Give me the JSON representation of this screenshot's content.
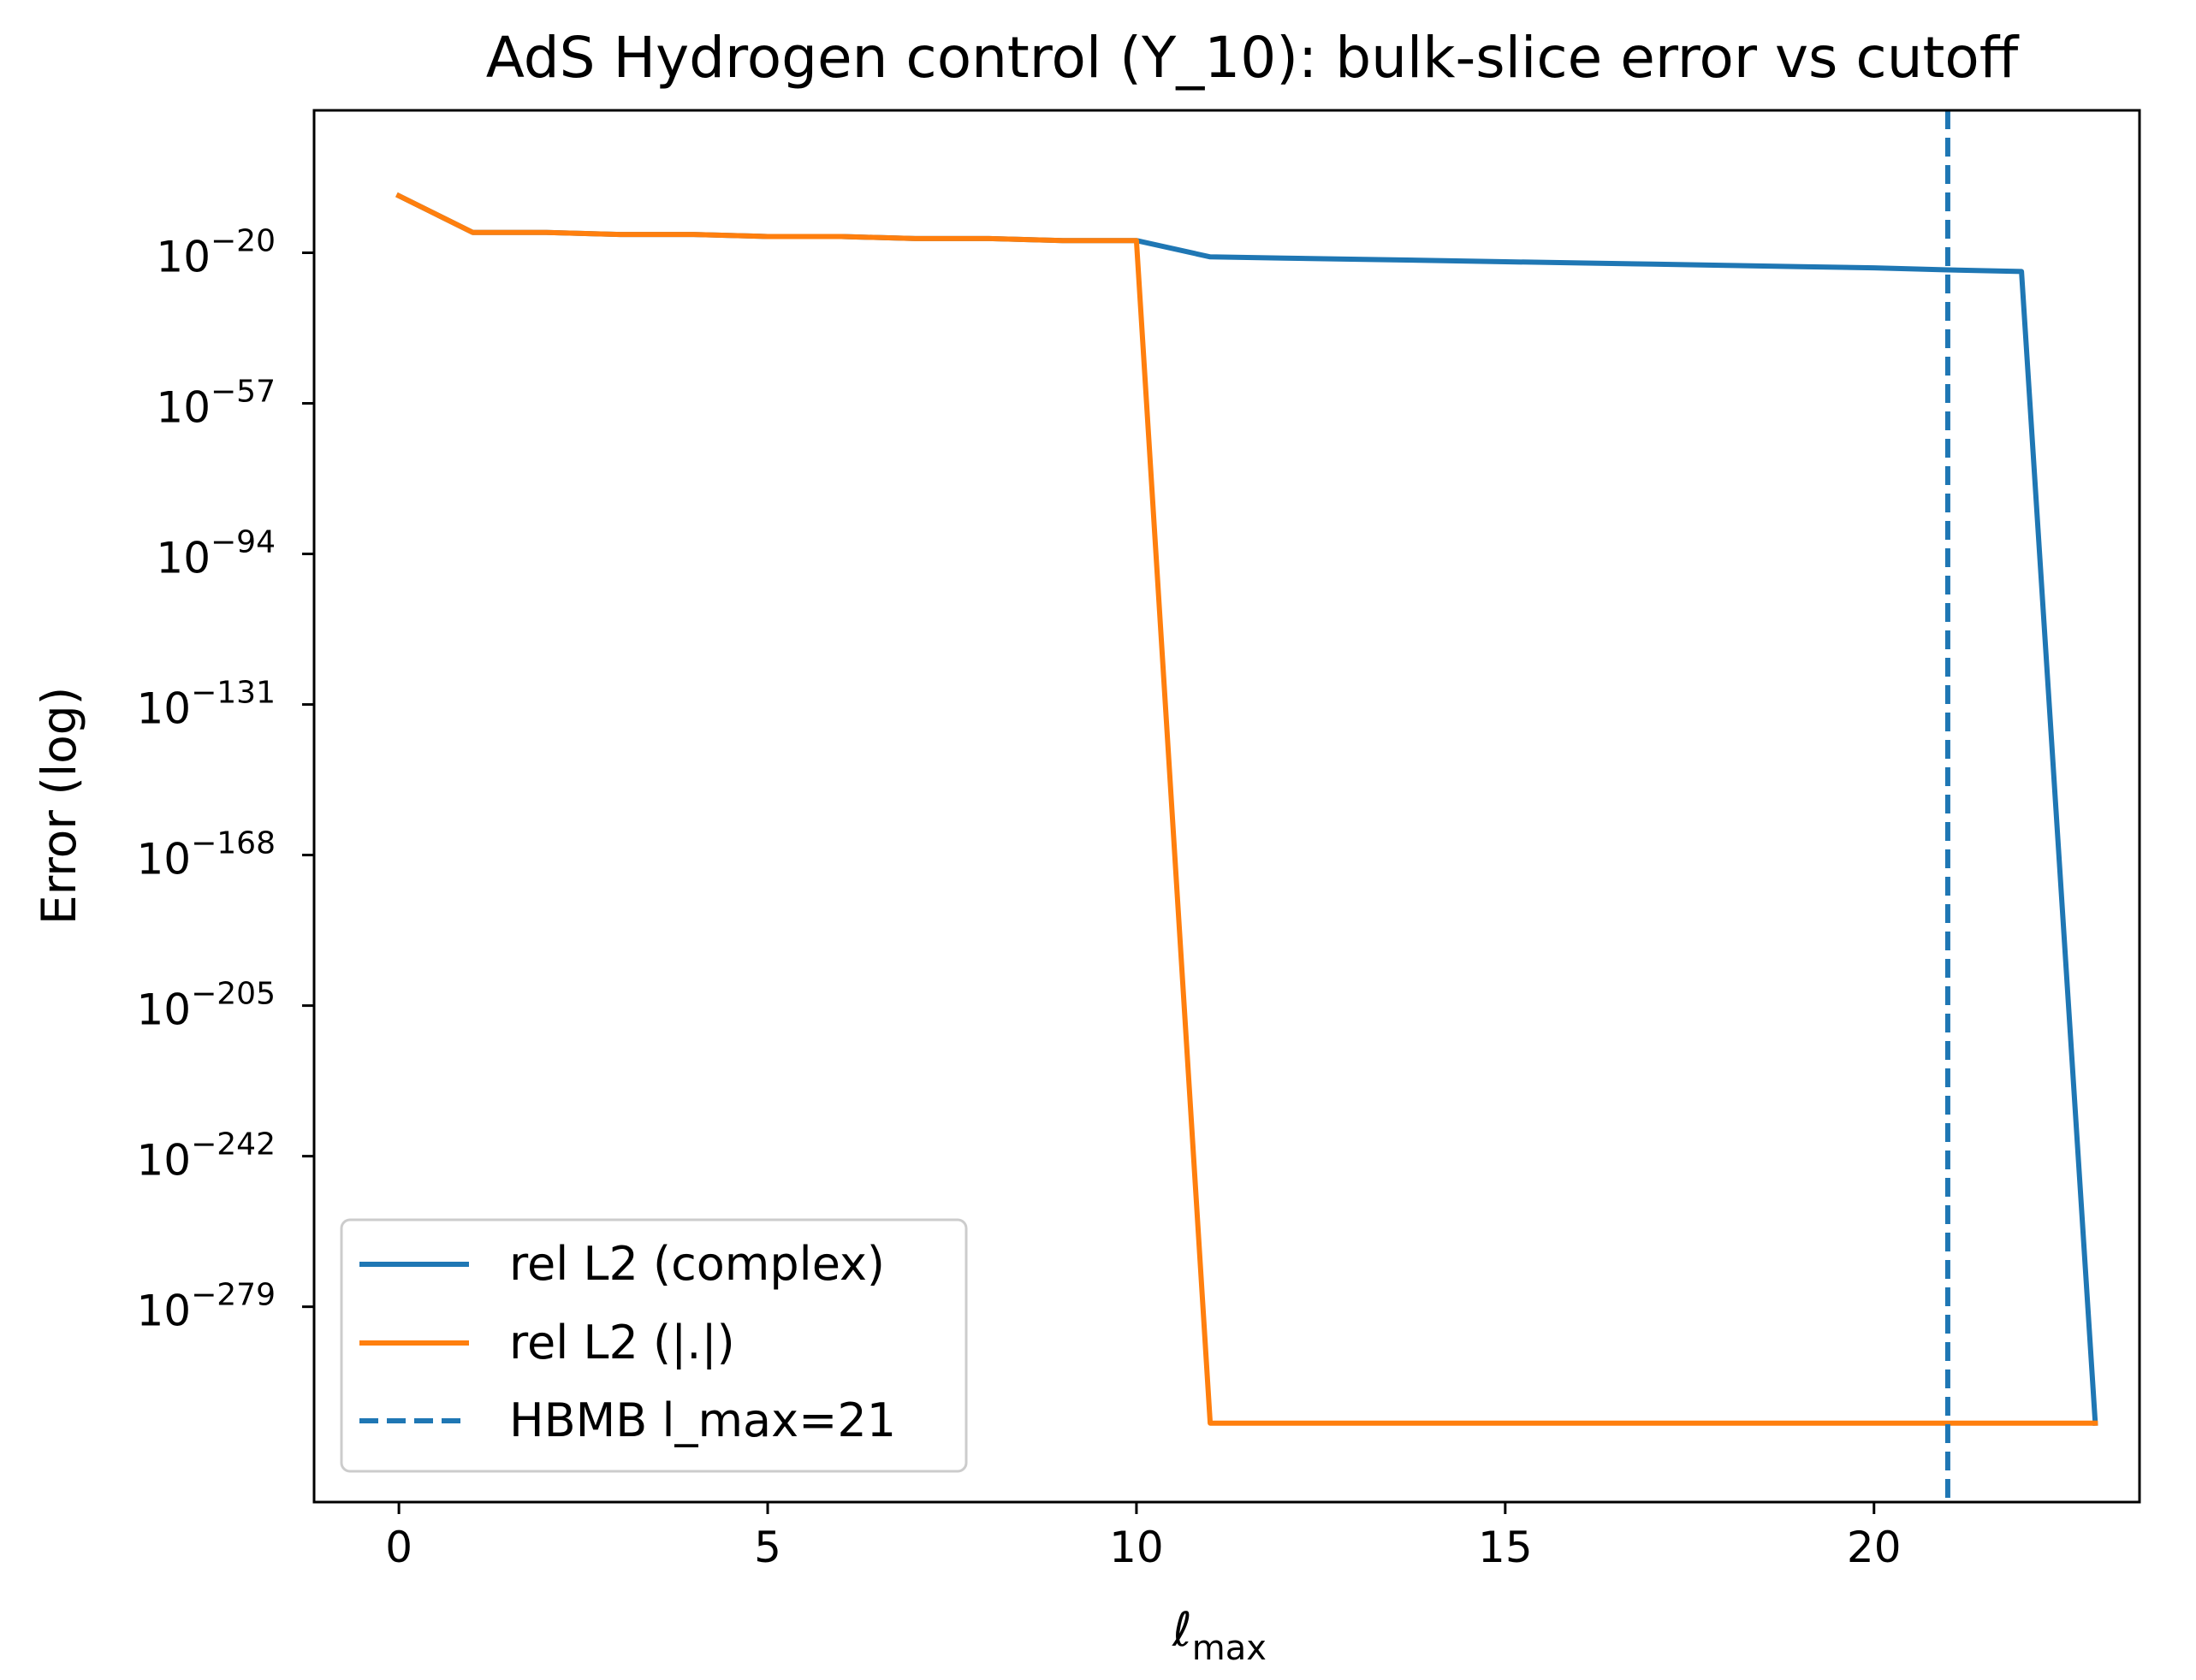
{
  "chart_data": {
    "type": "line",
    "title": "AdS Hydrogen control (Y_10): bulk-slice error vs cutoff",
    "xlabel": "ℓ",
    "xlabel_sub": "max",
    "ylabel": "Error (log)",
    "yscale": "log",
    "xlim": [
      -1.15,
      23.6
    ],
    "ylim_exp": [
      -327,
      15
    ],
    "x_ticks": [
      0,
      5,
      10,
      15,
      20
    ],
    "x_tick_labels": [
      "0",
      "5",
      "10",
      "15",
      "20"
    ],
    "y_tick_exponents": [
      -20,
      -57,
      -94,
      -131,
      -168,
      -205,
      -242,
      -279
    ],
    "y_tick_base": "10",
    "y_tick_exp_labels": [
      "−20",
      "−57",
      "−94",
      "−131",
      "−168",
      "−205",
      "−242",
      "−279"
    ],
    "series": [
      {
        "name": "rel L2 (complex)",
        "color": "#1f77b4",
        "style": "solid",
        "x": [
          0,
          1,
          2,
          3,
          4,
          5,
          6,
          7,
          8,
          9,
          10,
          11,
          12,
          13,
          14,
          15,
          16,
          17,
          18,
          19,
          20,
          21,
          22,
          23
        ],
        "log10_y": [
          -6,
          -15,
          -15,
          -15.5,
          -15.5,
          -16,
          -16,
          -16.5,
          -16.5,
          -17,
          -17,
          -21,
          -21.3,
          -21.6,
          -21.9,
          -22.2,
          -22.5,
          -22.8,
          -23.1,
          -23.4,
          -23.7,
          -24.2,
          -24.6,
          -307.6
        ]
      },
      {
        "name": "rel L2 (|.|)",
        "color": "#ff7f0e",
        "style": "solid",
        "x": [
          0,
          1,
          2,
          3,
          4,
          5,
          6,
          7,
          8,
          9,
          10,
          11,
          12,
          13,
          14,
          15,
          16,
          17,
          18,
          19,
          20,
          21,
          22,
          23
        ],
        "log10_y": [
          -6,
          -15,
          -15,
          -15.5,
          -15.5,
          -16,
          -16,
          -16.5,
          -16.5,
          -17,
          -17,
          -307.6,
          -307.6,
          -307.6,
          -307.6,
          -307.6,
          -307.6,
          -307.6,
          -307.6,
          -307.6,
          -307.6,
          -307.6,
          -307.6,
          -307.6
        ]
      }
    ],
    "reference_lines": [
      {
        "name": "HBMB l_max=21",
        "x": 21,
        "color": "#1f77b4",
        "style": "dashed"
      }
    ],
    "legend": {
      "location": "lower-left",
      "entries": [
        "rel L2 (complex)",
        "rel L2 (|.|)",
        "HBMB l_max=21"
      ]
    }
  }
}
